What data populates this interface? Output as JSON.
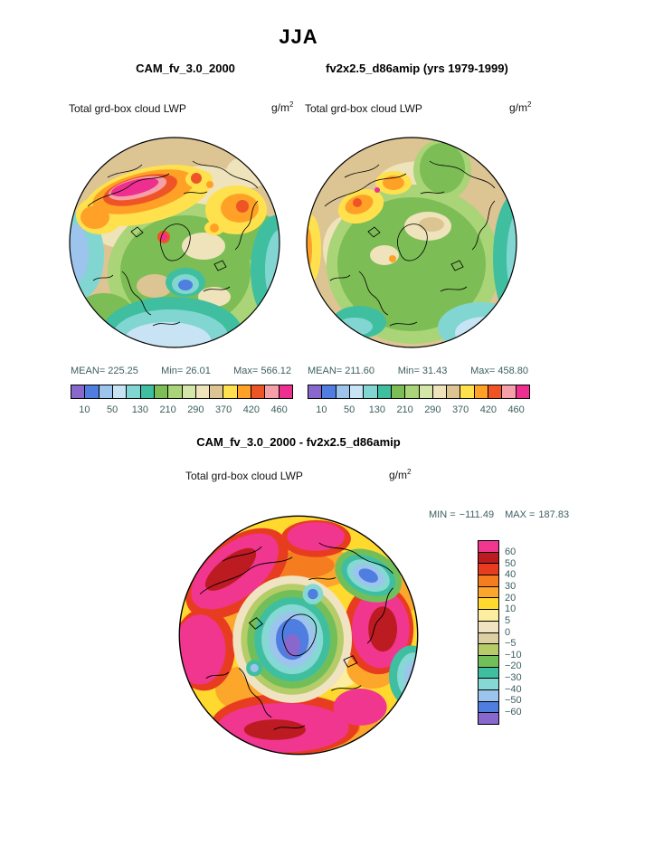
{
  "season_title": "JJA",
  "units": {
    "base": "g/m",
    "exp": "2"
  },
  "panels": {
    "left": {
      "model_title": "CAM_fv_3.0_2000",
      "field_label": "Total grd-box cloud LWP",
      "stats": {
        "mean_label": "MEAN=",
        "mean": "225.25",
        "min_label": "Min=",
        "min": "26.01",
        "max_label": "Max=",
        "max": "566.12"
      }
    },
    "right": {
      "model_title": "fv2x2.5_d86amip (yrs 1979-1999)",
      "field_label": "Total grd-box cloud LWP",
      "stats": {
        "mean_label": "MEAN=",
        "mean": "211.60",
        "min_label": "Min=",
        "min": "31.43",
        "max_label": "Max=",
        "max": "458.80"
      }
    }
  },
  "lwp_colorbar": {
    "ticks": [
      "10",
      "50",
      "130",
      "210",
      "290",
      "370",
      "420",
      "460"
    ],
    "palette": [
      "#8968cd",
      "#4f7de0",
      "#9cc4ec",
      "#c8e4f4",
      "#82d6d2",
      "#3fbfa0",
      "#7cbd55",
      "#a9d477",
      "#d4e6a8",
      "#efe3bb",
      "#dcc493",
      "#ffe14d",
      "#ffa127",
      "#ef5426",
      "#f5a0a8",
      "#ee2f8f"
    ]
  },
  "diff": {
    "title": "CAM_fv_3.0_2000 - fv2x2.5_d86amip",
    "field_label": "Total grd-box cloud LWP",
    "stats": {
      "min_label": "MIN =",
      "min": "−111.49",
      "max_label": "MAX =",
      "max": "187.83"
    },
    "colorbar": {
      "ticks": [
        "60",
        "50",
        "40",
        "30",
        "20",
        "10",
        "5",
        "0",
        "−5",
        "−10",
        "−20",
        "−30",
        "−40",
        "−50",
        "−60"
      ],
      "palette": [
        "#f0368e",
        "#bc1b21",
        "#e83c20",
        "#f57d20",
        "#fca62b",
        "#ffd92e",
        "#fbee9e",
        "#f0e3c2",
        "#dccfa2",
        "#b5cc68",
        "#72bf5a",
        "#3fbfa0",
        "#85d8d4",
        "#9cc4ec",
        "#4f7de0",
        "#8968cd"
      ]
    }
  },
  "chart_data": [
    {
      "type": "heatmap",
      "subtype": "polar-stereographic-filled-contour-map",
      "season": "JJA",
      "title": "CAM_fv_3.0_2000",
      "variable": "Total grd-box cloud LWP",
      "units": "g/m²",
      "stats": {
        "mean": 225.25,
        "min": 26.01,
        "max": 566.12
      },
      "contour_levels": [
        10,
        50,
        130,
        210,
        290,
        370,
        420,
        460
      ],
      "legend_position": "bottom"
    },
    {
      "type": "heatmap",
      "subtype": "polar-stereographic-filled-contour-map",
      "season": "JJA",
      "title": "fv2x2.5_d86amip (yrs 1979-1999)",
      "variable": "Total grd-box cloud LWP",
      "units": "g/m²",
      "stats": {
        "mean": 211.6,
        "min": 31.43,
        "max": 458.8
      },
      "contour_levels": [
        10,
        50,
        130,
        210,
        290,
        370,
        420,
        460
      ],
      "legend_position": "bottom"
    },
    {
      "type": "heatmap",
      "subtype": "polar-stereographic-filled-contour-map",
      "season": "JJA",
      "title": "CAM_fv_3.0_2000 - fv2x2.5_d86amip",
      "variable": "Total grd-box cloud LWP (difference)",
      "units": "g/m²",
      "stats": {
        "min": -111.49,
        "max": 187.83
      },
      "contour_levels": [
        60,
        50,
        40,
        30,
        20,
        10,
        5,
        0,
        -5,
        -10,
        -20,
        -30,
        -40,
        -50,
        -60
      ],
      "legend_position": "right"
    }
  ]
}
